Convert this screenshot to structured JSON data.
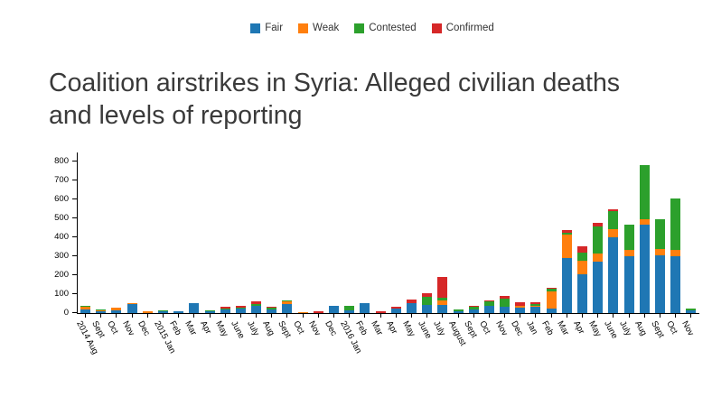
{
  "title": "Coalition airstrikes in Syria: Alleged civilian deaths and levels of reporting",
  "legend": {
    "items": [
      {
        "label": "Fair",
        "color": "#1f77b4"
      },
      {
        "label": "Weak",
        "color": "#ff7f0e"
      },
      {
        "label": "Contested",
        "color": "#2ca02c"
      },
      {
        "label": "Confirmed",
        "color": "#d62728"
      }
    ]
  },
  "colors": {
    "axis": "#000000",
    "title_text": "#3a3a3a",
    "legend_text": "#333333",
    "background": "#ffffff"
  },
  "chart_data": {
    "type": "bar",
    "stacked": true,
    "title": "Coalition airstrikes in Syria: Alleged civilian deaths and levels of reporting",
    "xlabel": "",
    "ylabel": "",
    "ylim": [
      0,
      800
    ],
    "ytick_step": 100,
    "yticks": [
      0,
      100,
      200,
      300,
      400,
      500,
      600,
      700,
      800
    ],
    "grid": false,
    "legend_position": "top",
    "categories": [
      "2014 Aug",
      "Sept",
      "Oct",
      "Nov",
      "Dec",
      "2015 Jan",
      "Feb",
      "Mar",
      "Apr",
      "May",
      "June",
      "July",
      "Aug",
      "Sept",
      "Oct",
      "Nov",
      "Dec",
      "2016 Jan",
      "Feb",
      "Mar",
      "Apr",
      "May",
      "June",
      "July",
      "August",
      "Sept",
      "Oct",
      "Nov",
      "Dec",
      "Jan",
      "Feb",
      "Mar",
      "Apr",
      "May",
      "June",
      "July",
      "Aug",
      "Sept",
      "Oct",
      "Nov"
    ],
    "series": [
      {
        "name": "Fair",
        "color": "#1f77b4",
        "values": [
          21,
          10,
          16,
          47,
          0,
          11,
          8,
          51,
          8,
          19,
          24,
          38,
          20,
          47,
          0,
          0,
          36,
          13,
          52,
          0,
          24,
          50,
          45,
          45,
          9,
          17,
          40,
          33,
          27,
          33,
          25,
          290,
          204,
          270,
          400,
          300,
          464,
          305,
          299,
          12
        ]
      },
      {
        "name": "Weak",
        "color": "#ff7f0e",
        "values": [
          11,
          3,
          11,
          7,
          10,
          0,
          0,
          0,
          0,
          0,
          0,
          0,
          0,
          13,
          6,
          0,
          0,
          0,
          0,
          0,
          0,
          0,
          0,
          20,
          0,
          0,
          0,
          0,
          13,
          3,
          87,
          125,
          70,
          45,
          43,
          32,
          28,
          32,
          35,
          3
        ]
      },
      {
        "name": "Contested",
        "color": "#2ca02c",
        "values": [
          6,
          5,
          3,
          0,
          0,
          5,
          0,
          0,
          5,
          3,
          5,
          8,
          7,
          6,
          0,
          0,
          0,
          24,
          0,
          0,
          0,
          0,
          40,
          15,
          11,
          16,
          22,
          41,
          0,
          12,
          16,
          10,
          45,
          140,
          92,
          135,
          288,
          158,
          269,
          9
        ]
      },
      {
        "name": "Confirmed",
        "color": "#d62728",
        "values": [
          0,
          0,
          0,
          0,
          0,
          0,
          0,
          0,
          3,
          11,
          8,
          14,
          6,
          0,
          0,
          9,
          0,
          0,
          0,
          9,
          10,
          20,
          20,
          110,
          0,
          3,
          3,
          16,
          19,
          11,
          3,
          12,
          35,
          22,
          13,
          0,
          0,
          0,
          0,
          0
        ]
      }
    ]
  }
}
